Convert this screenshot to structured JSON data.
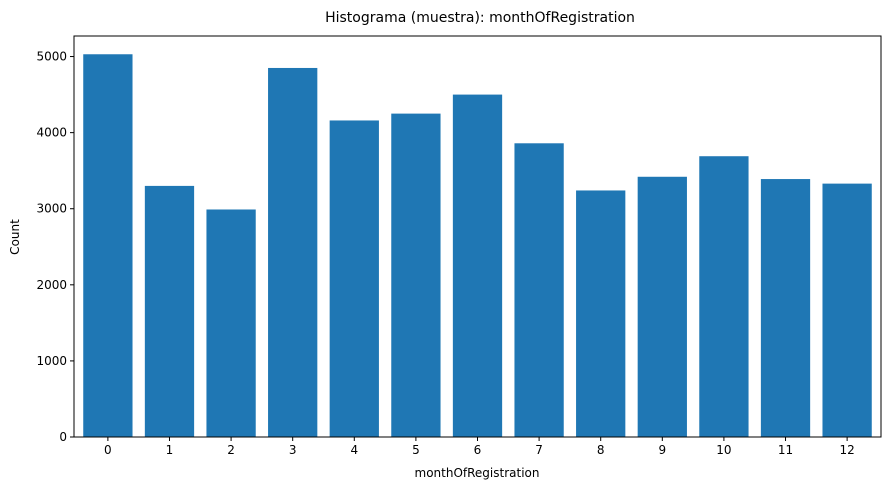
{
  "chart_data": {
    "type": "bar",
    "title": "Histograma (muestra): monthOfRegistration",
    "xlabel": "monthOfRegistration",
    "ylabel": "Count",
    "categories": [
      "0",
      "1",
      "2",
      "3",
      "4",
      "5",
      "6",
      "7",
      "8",
      "9",
      "10",
      "11",
      "12"
    ],
    "values": [
      5030,
      3300,
      2990,
      4850,
      4160,
      4250,
      4500,
      3860,
      3240,
      3420,
      3690,
      3390,
      3330
    ],
    "ylim": [
      0,
      5270
    ],
    "yticks": [
      0,
      1000,
      2000,
      3000,
      4000,
      5000
    ],
    "grid": false,
    "legend": "none",
    "bar_color": "#1f77b4"
  }
}
